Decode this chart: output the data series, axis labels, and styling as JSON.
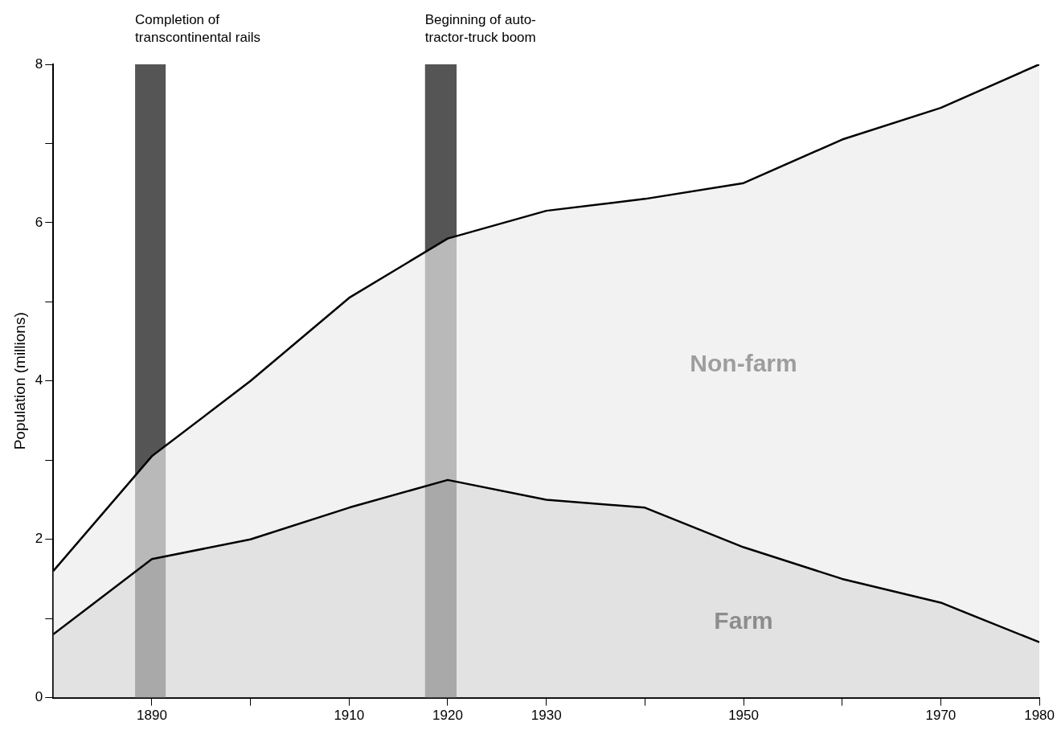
{
  "chart_data": {
    "type": "area",
    "ylabel": "Population (millions)",
    "stacked": true,
    "x": [
      1880,
      1890,
      1900,
      1910,
      1920,
      1930,
      1940,
      1950,
      1960,
      1970,
      1980
    ],
    "series": [
      {
        "name": "Farm",
        "color": "#d4d4d4",
        "values": [
          0.8,
          1.75,
          2.0,
          2.4,
          2.75,
          2.5,
          2.4,
          1.9,
          1.5,
          1.2,
          0.7
        ]
      },
      {
        "name": "Non-farm",
        "color": "#ececec",
        "values": [
          0.8,
          1.3,
          2.0,
          2.65,
          3.05,
          3.65,
          3.9,
          4.6,
          5.55,
          6.25,
          7.3
        ]
      }
    ],
    "xlim": [
      1880,
      1980
    ],
    "xticks": [
      1890,
      {
        "value": 1900,
        "label": null
      },
      1910,
      1920,
      1930,
      {
        "value": 1940,
        "label": null
      },
      1950,
      {
        "value": 1960,
        "label": null
      },
      1970,
      1980
    ],
    "ylim": [
      0,
      8
    ],
    "yticks": [
      0,
      {
        "value": 1,
        "label": null
      },
      2,
      {
        "value": 3,
        "label": null
      },
      4,
      {
        "value": 5,
        "label": null
      },
      6,
      {
        "value": 7,
        "label": null
      },
      8
    ],
    "bands": [
      {
        "axis": "x",
        "from": 1888.3,
        "to": 1891.4,
        "label": "Completion of\ntranscontinental rails",
        "color": "#555555"
      },
      {
        "axis": "x",
        "from": 1917.7,
        "to": 1920.9,
        "label": "Beginning of auto-\ntractor-truck boom",
        "color": "#555555"
      }
    ],
    "grid": false,
    "legend": false
  }
}
